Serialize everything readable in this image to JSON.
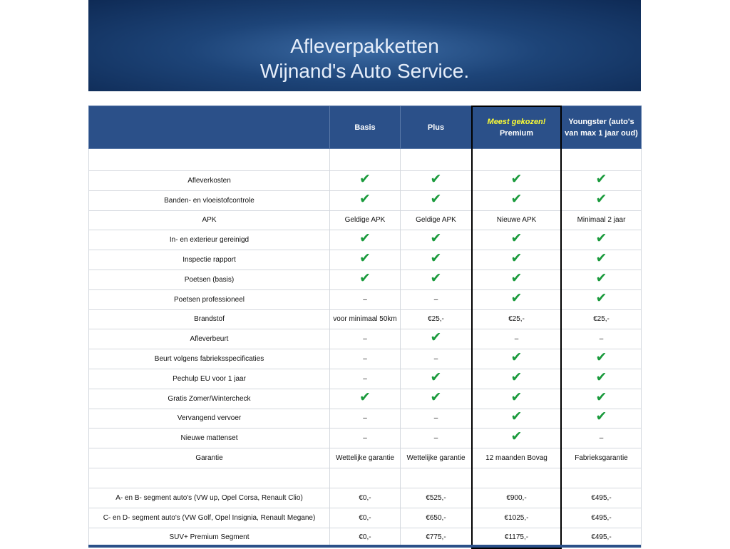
{
  "header": {
    "title_lines": [
      "Afleverpakketten",
      "Wijnand's Auto Service."
    ]
  },
  "table": {
    "columns": [
      {
        "label": "Basis"
      },
      {
        "label": "Plus"
      },
      {
        "badge": "Meest gekozen!",
        "label": "Premium"
      },
      {
        "label": "Youngster (auto's van max 1 jaar oud)"
      }
    ],
    "sections": [
      {
        "rows": [
          [
            "Afleverkosten",
            "✔",
            "✔",
            "✔",
            "✔"
          ],
          [
            "Banden- en vloeistofcontrole",
            "✔",
            "✔",
            "✔",
            "✔"
          ],
          [
            "APK",
            "Geldige APK",
            "Geldige APK",
            "Nieuwe APK",
            "Minimaal 2 jaar"
          ],
          [
            "In- en exterieur gereinigd",
            "✔",
            "✔",
            "✔",
            "✔"
          ],
          [
            "Inspectie rapport",
            "✔",
            "✔",
            "✔",
            "✔"
          ],
          [
            "Poetsen (basis)",
            "✔",
            "✔",
            "✔",
            "✔"
          ],
          [
            "Poetsen professioneel",
            "–",
            "–",
            "✔",
            "✔"
          ],
          [
            "Brandstof",
            "voor minimaal 50km",
            "€25,-",
            "€25,-",
            "€25,-"
          ],
          [
            "Afleverbeurt",
            "–",
            "✔",
            "–",
            "–"
          ],
          [
            "Beurt volgens fabrieksspecificaties",
            "–",
            "–",
            "✔",
            "✔"
          ],
          [
            "Pechulp EU voor 1 jaar",
            "–",
            "✔",
            "✔",
            "✔"
          ],
          [
            "Gratis Zomer/Wintercheck",
            "✔",
            "✔",
            "✔",
            "✔"
          ],
          [
            "Vervangend vervoer",
            "–",
            "–",
            "✔",
            "✔"
          ],
          [
            "Nieuwe mattenset",
            "–",
            "–",
            "✔",
            "–"
          ],
          [
            "Garantie",
            "Wettelijke garantie",
            "Wettelijke garantie",
            "12 maanden Bovag",
            "Fabrieksgarantie"
          ]
        ]
      },
      {
        "rows": [
          [
            "A- en B- segment auto's (VW up, Opel Corsa, Renault Clio)",
            "€0,-",
            "€525,-",
            "€900,-",
            "€495,-"
          ],
          [
            "C- en D- segment auto's (VW Golf, Opel Insignia, Renault Megane)",
            "€0,-",
            "€650,-",
            "€1025,-",
            "€495,-"
          ],
          [
            "SUV+ Premium Segment",
            "€0,-",
            "€775,-",
            "€1175,-",
            "€495,-"
          ]
        ]
      }
    ]
  }
}
